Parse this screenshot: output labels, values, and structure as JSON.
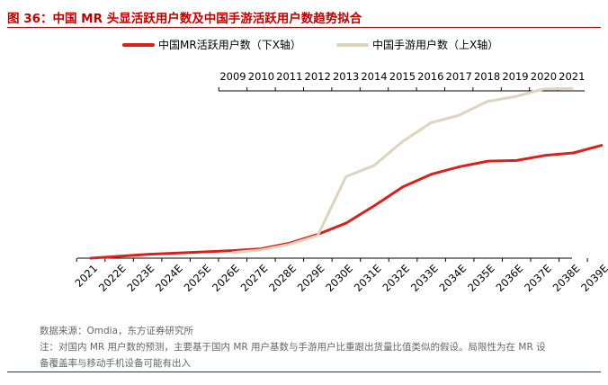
{
  "figure": {
    "title": "图 36：中国 MR 头显活跃用户数及中国手游活跃用户数趋势拟合",
    "source": "数据来源：Omdia，东方证券研究所",
    "note_line1": "注：对国内 MR 用户数的预测，主要基于国内 MR 用户基数与手游用户比重跟出货量比值类似的假设。局限性为在 MR 设",
    "note_line2": "备覆盖率与移动手机设备可能有出入"
  },
  "colors": {
    "accent": "#c00000",
    "mr_series": "#d9211c",
    "mobile_series": "#ddd4bf"
  },
  "chart_data": {
    "type": "line",
    "title": "",
    "legend_position": "top-center",
    "grid": false,
    "x_bottom": {
      "label": "",
      "categories": [
        "2021",
        "2022E",
        "2023E",
        "2024E",
        "2025E",
        "2026E",
        "2027E",
        "2028E",
        "2029E",
        "2030E",
        "2031E",
        "2032E",
        "2033E",
        "2034E",
        "2035E",
        "2036E",
        "2037E",
        "2038E",
        "2039E"
      ]
    },
    "x_top": {
      "label": "",
      "categories": [
        "2009",
        "2010",
        "2011",
        "2012",
        "2013",
        "2014",
        "2015",
        "2016",
        "2017",
        "2018",
        "2019",
        "2020",
        "2021"
      ]
    },
    "y": {
      "label": "",
      "ticks_shown": false,
      "range": [
        0,
        100
      ]
    },
    "series": [
      {
        "name": "中国MR活跃用户数（下X轴）",
        "axis": "bottom",
        "color": "#d9211c",
        "values": [
          0,
          1.5,
          3,
          4,
          5,
          6,
          7.5,
          12,
          19,
          28,
          42,
          57,
          67,
          73,
          77.5,
          78,
          82,
          84,
          90
        ]
      },
      {
        "name": "中国手游用户数（上X轴）",
        "axis": "top",
        "color": "#ddd4bf",
        "values": [
          4.5,
          6.5,
          11,
          18,
          65,
          74,
          93,
          108,
          114,
          125,
          129,
          135,
          135.5
        ]
      }
    ]
  }
}
